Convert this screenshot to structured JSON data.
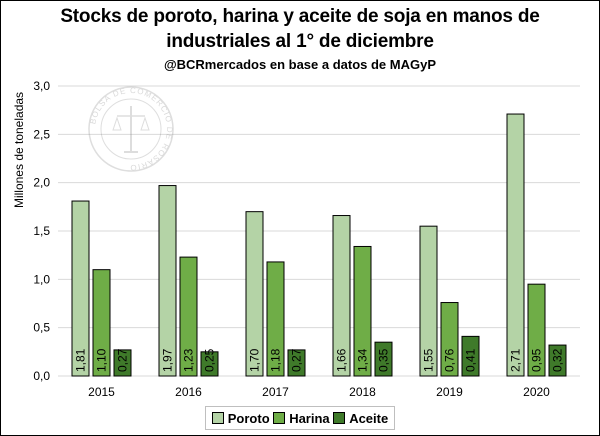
{
  "chart_data": {
    "type": "bar",
    "title_line1": "Stocks de poroto, harina y aceite de soja en manos de",
    "title_line2": "industriales al 1° de diciembre",
    "subtitle": "@BCRmercados en base a datos de MAGyP",
    "ylabel": "Millones de toneladas",
    "xlabel": "",
    "ylim": [
      0,
      3
    ],
    "yticks": [
      "0,0",
      "0,5",
      "1,0",
      "1,5",
      "2,0",
      "2,5",
      "3,0"
    ],
    "categories": [
      "2015",
      "2016",
      "2017",
      "2018",
      "2019",
      "2020"
    ],
    "grid": true,
    "legend_position": "bottom",
    "watermark_text": "BOLSA DE COMERCIO DE ROSARIO",
    "series": [
      {
        "name": "Poroto",
        "color": "#b4d3a6",
        "values": [
          1.81,
          1.97,
          1.7,
          1.66,
          1.55,
          2.71
        ],
        "labels": [
          "1,81",
          "1,97",
          "1,70",
          "1,66",
          "1,55",
          "2,71"
        ]
      },
      {
        "name": "Harina",
        "color": "#6fad47",
        "values": [
          1.1,
          1.23,
          1.18,
          1.34,
          0.76,
          0.95
        ],
        "labels": [
          "1,10",
          "1,23",
          "1,18",
          "1,34",
          "0,76",
          "0,95"
        ]
      },
      {
        "name": "Aceite",
        "color": "#3f7a2a",
        "values": [
          0.27,
          0.25,
          0.27,
          0.35,
          0.41,
          0.32
        ],
        "labels": [
          "0,27",
          "0,25",
          "0,27",
          "0,35",
          "0,41",
          "0,32"
        ]
      }
    ]
  }
}
